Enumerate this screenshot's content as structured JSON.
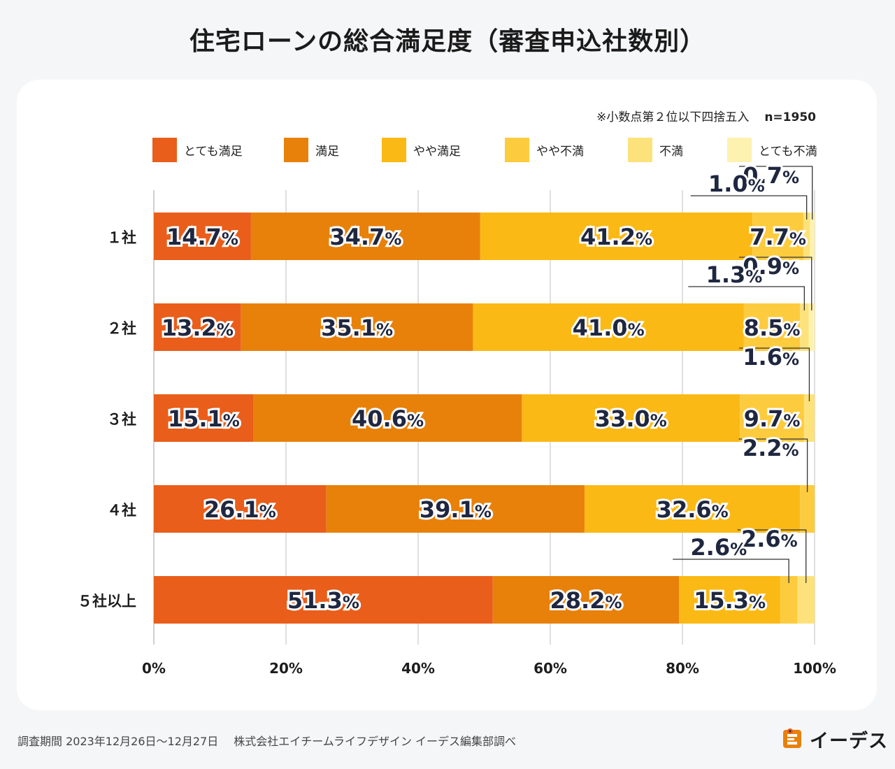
{
  "title": "住宅ローンの総合満足度（審査申込社数別）",
  "note": {
    "rounding": "※小数点第２位以下四捨五入",
    "sample": "n=1950"
  },
  "source": {
    "period": "調査期間 2023年12月26日〜12月27日",
    "company": "株式会社エイチームライフデザイン イーデス編集部調べ"
  },
  "logo": {
    "text": "イーデス",
    "icon": "edes-logo-icon"
  },
  "colors": {
    "とても満足": "#e95e1a",
    "満足": "#e8810a",
    "やや満足": "#fbb915",
    "やや不満": "#fdcb3e",
    "不満": "#fde27c",
    "とても不満": "#fef2b0",
    "grid": "#bfbfbf",
    "label": "#1f2740"
  },
  "chart_data": {
    "type": "bar",
    "orientation": "horizontal",
    "stacked": true,
    "title": "住宅ローンの総合満足度（審査申込社数別）",
    "categories": [
      "１社",
      "２社",
      "３社",
      "４社",
      "５社以上"
    ],
    "xlim": [
      0,
      100
    ],
    "x_ticks": [
      "0%",
      "20%",
      "40%",
      "60%",
      "80%",
      "100%"
    ],
    "grid": true,
    "legend_position": "top",
    "series": [
      {
        "name": "とても満足",
        "values": [
          14.7,
          13.2,
          15.1,
          26.1,
          51.3
        ]
      },
      {
        "name": "満足",
        "values": [
          34.7,
          35.1,
          40.6,
          39.1,
          28.2
        ]
      },
      {
        "name": "やや満足",
        "values": [
          41.2,
          41.0,
          33.0,
          32.6,
          15.3
        ]
      },
      {
        "name": "やや不満",
        "values": [
          7.7,
          8.5,
          9.7,
          2.2,
          2.6
        ]
      },
      {
        "name": "不満",
        "values": [
          1.0,
          1.3,
          1.6,
          0,
          2.6
        ]
      },
      {
        "name": "とても不満",
        "values": [
          0.7,
          0.9,
          0,
          0,
          0
        ]
      }
    ]
  }
}
